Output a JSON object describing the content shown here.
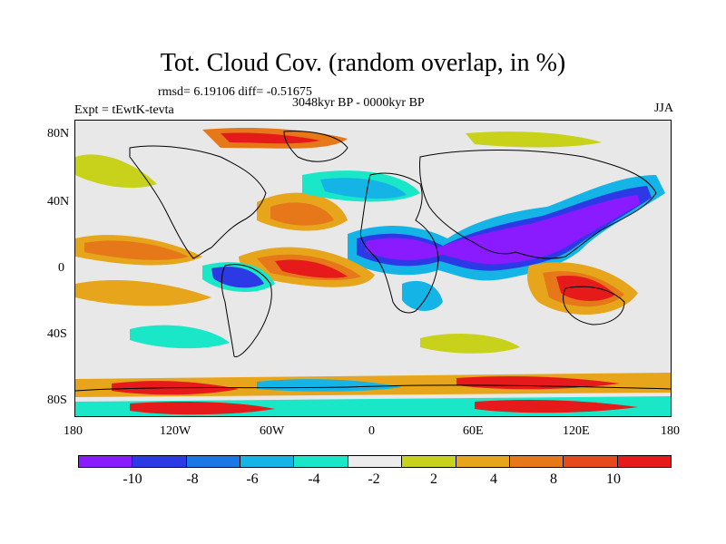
{
  "title": "Tot. Cloud Cov. (random overlap, in %)",
  "stats": "rmsd= 6.19106 diff= -0.51675",
  "period": "3048kyr BP - 0000kyr BP",
  "experiment": "Expt = tEwtK-tevta",
  "season": "JJA",
  "map": {
    "lat_ticks": [
      "80N",
      "40N",
      "0",
      "40S",
      "80S"
    ],
    "lon_ticks": [
      "180",
      "120W",
      "60W",
      "0",
      "60E",
      "120E",
      "180"
    ]
  },
  "colorbar": {
    "colors": [
      "#8a1aff",
      "#2c3ae6",
      "#1a78e6",
      "#15b4e6",
      "#1ae6c8",
      "#ececec",
      "#c8d21a",
      "#e6a51a",
      "#e6781a",
      "#e64a1a",
      "#e61a1a"
    ],
    "labels": [
      "-10",
      "-8",
      "-6",
      "-4",
      "-2",
      "2",
      "4",
      "8",
      "10"
    ]
  }
}
